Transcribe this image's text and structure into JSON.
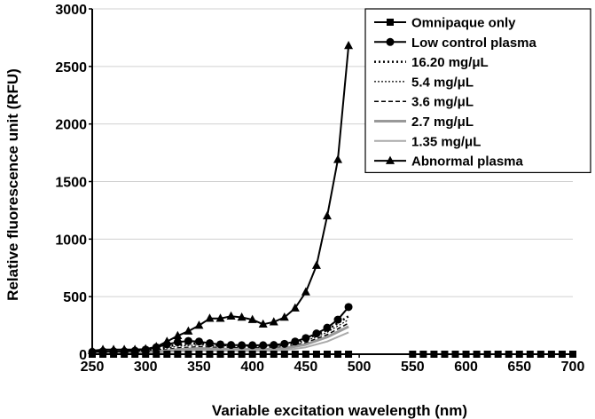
{
  "chart_data": {
    "type": "line",
    "title": "",
    "xlabel": "Variable excitation wavelength (nm)",
    "ylabel": "Relative fluorescence unit (RFU)",
    "xlim": [
      250,
      700
    ],
    "ylim": [
      0,
      3000
    ],
    "xticks": [
      250,
      300,
      350,
      400,
      450,
      500,
      550,
      600,
      650,
      700
    ],
    "yticks": [
      0,
      500,
      1000,
      1500,
      2000,
      2500,
      3000
    ],
    "grid": "horizontal",
    "legend_position": "top-right",
    "series": [
      {
        "name": "Omnipaque only",
        "style": "solid",
        "marker": "square",
        "color": "#000000",
        "x": [
          250,
          260,
          270,
          280,
          290,
          300,
          310,
          320,
          330,
          340,
          350,
          360,
          370,
          380,
          390,
          400,
          410,
          420,
          430,
          440,
          450,
          460,
          470,
          480,
          490,
          550,
          560,
          570,
          580,
          590,
          600,
          610,
          620,
          630,
          640,
          650,
          660,
          670,
          680,
          690,
          700
        ],
        "y": [
          0,
          0,
          0,
          0,
          0,
          0,
          0,
          0,
          0,
          0,
          0,
          0,
          0,
          0,
          0,
          0,
          0,
          0,
          0,
          0,
          0,
          0,
          0,
          0,
          0,
          0,
          0,
          0,
          0,
          0,
          0,
          0,
          0,
          0,
          0,
          0,
          0,
          0,
          0,
          0,
          0
        ]
      },
      {
        "name": "Low control plasma",
        "style": "solid",
        "marker": "circle",
        "color": "#000000",
        "x": [
          250,
          260,
          270,
          280,
          290,
          300,
          310,
          320,
          330,
          340,
          350,
          360,
          370,
          380,
          390,
          400,
          410,
          420,
          430,
          440,
          450,
          460,
          470,
          480,
          490
        ],
        "y": [
          20,
          25,
          25,
          25,
          30,
          40,
          60,
          85,
          105,
          115,
          110,
          95,
          85,
          80,
          78,
          78,
          78,
          80,
          90,
          110,
          140,
          180,
          230,
          300,
          410
        ]
      },
      {
        "name": "16.20 mg/μL",
        "style": "dotted",
        "marker": "none",
        "color": "#000000",
        "x": [
          250,
          270,
          290,
          310,
          330,
          350,
          370,
          390,
          410,
          430,
          450,
          470,
          490
        ],
        "y": [
          15,
          20,
          25,
          45,
          85,
          95,
          80,
          75,
          75,
          85,
          130,
          210,
          330
        ]
      },
      {
        "name": "5.4 mg/μL",
        "style": "fine-dotted",
        "marker": "none",
        "color": "#000000",
        "x": [
          250,
          270,
          290,
          310,
          330,
          350,
          370,
          390,
          410,
          430,
          450,
          470,
          490
        ],
        "y": [
          10,
          15,
          20,
          35,
          70,
          80,
          70,
          65,
          65,
          75,
          115,
          190,
          300
        ]
      },
      {
        "name": "3.6 mg/μL",
        "style": "dashed",
        "marker": "none",
        "color": "#000000",
        "x": [
          250,
          270,
          290,
          310,
          330,
          350,
          370,
          390,
          410,
          430,
          450,
          470,
          490
        ],
        "y": [
          8,
          12,
          15,
          28,
          55,
          65,
          58,
          55,
          55,
          62,
          100,
          170,
          270
        ]
      },
      {
        "name": "2.7 mg/μL",
        "style": "solid-thick",
        "marker": "none",
        "color": "#999999",
        "x": [
          250,
          270,
          290,
          310,
          330,
          350,
          370,
          390,
          410,
          430,
          450,
          470,
          490
        ],
        "y": [
          5,
          8,
          10,
          20,
          40,
          50,
          45,
          42,
          42,
          50,
          85,
          150,
          240
        ]
      },
      {
        "name": "1.35 mg/μL",
        "style": "solid",
        "marker": "none",
        "color": "#aaaaaa",
        "x": [
          250,
          270,
          290,
          310,
          330,
          350,
          370,
          390,
          410,
          430,
          450,
          470,
          490
        ],
        "y": [
          3,
          5,
          6,
          12,
          25,
          32,
          30,
          28,
          28,
          34,
          60,
          110,
          190
        ]
      },
      {
        "name": "Abnormal plasma",
        "style": "solid",
        "marker": "triangle",
        "color": "#000000",
        "x": [
          250,
          260,
          270,
          280,
          290,
          300,
          310,
          320,
          330,
          340,
          350,
          360,
          370,
          380,
          390,
          400,
          410,
          420,
          430,
          440,
          450,
          460,
          470,
          480,
          490
        ],
        "y": [
          30,
          40,
          40,
          40,
          40,
          45,
          65,
          110,
          160,
          200,
          250,
          310,
          310,
          330,
          320,
          300,
          260,
          280,
          320,
          400,
          540,
          770,
          1200,
          1690,
          2680
        ]
      }
    ]
  }
}
